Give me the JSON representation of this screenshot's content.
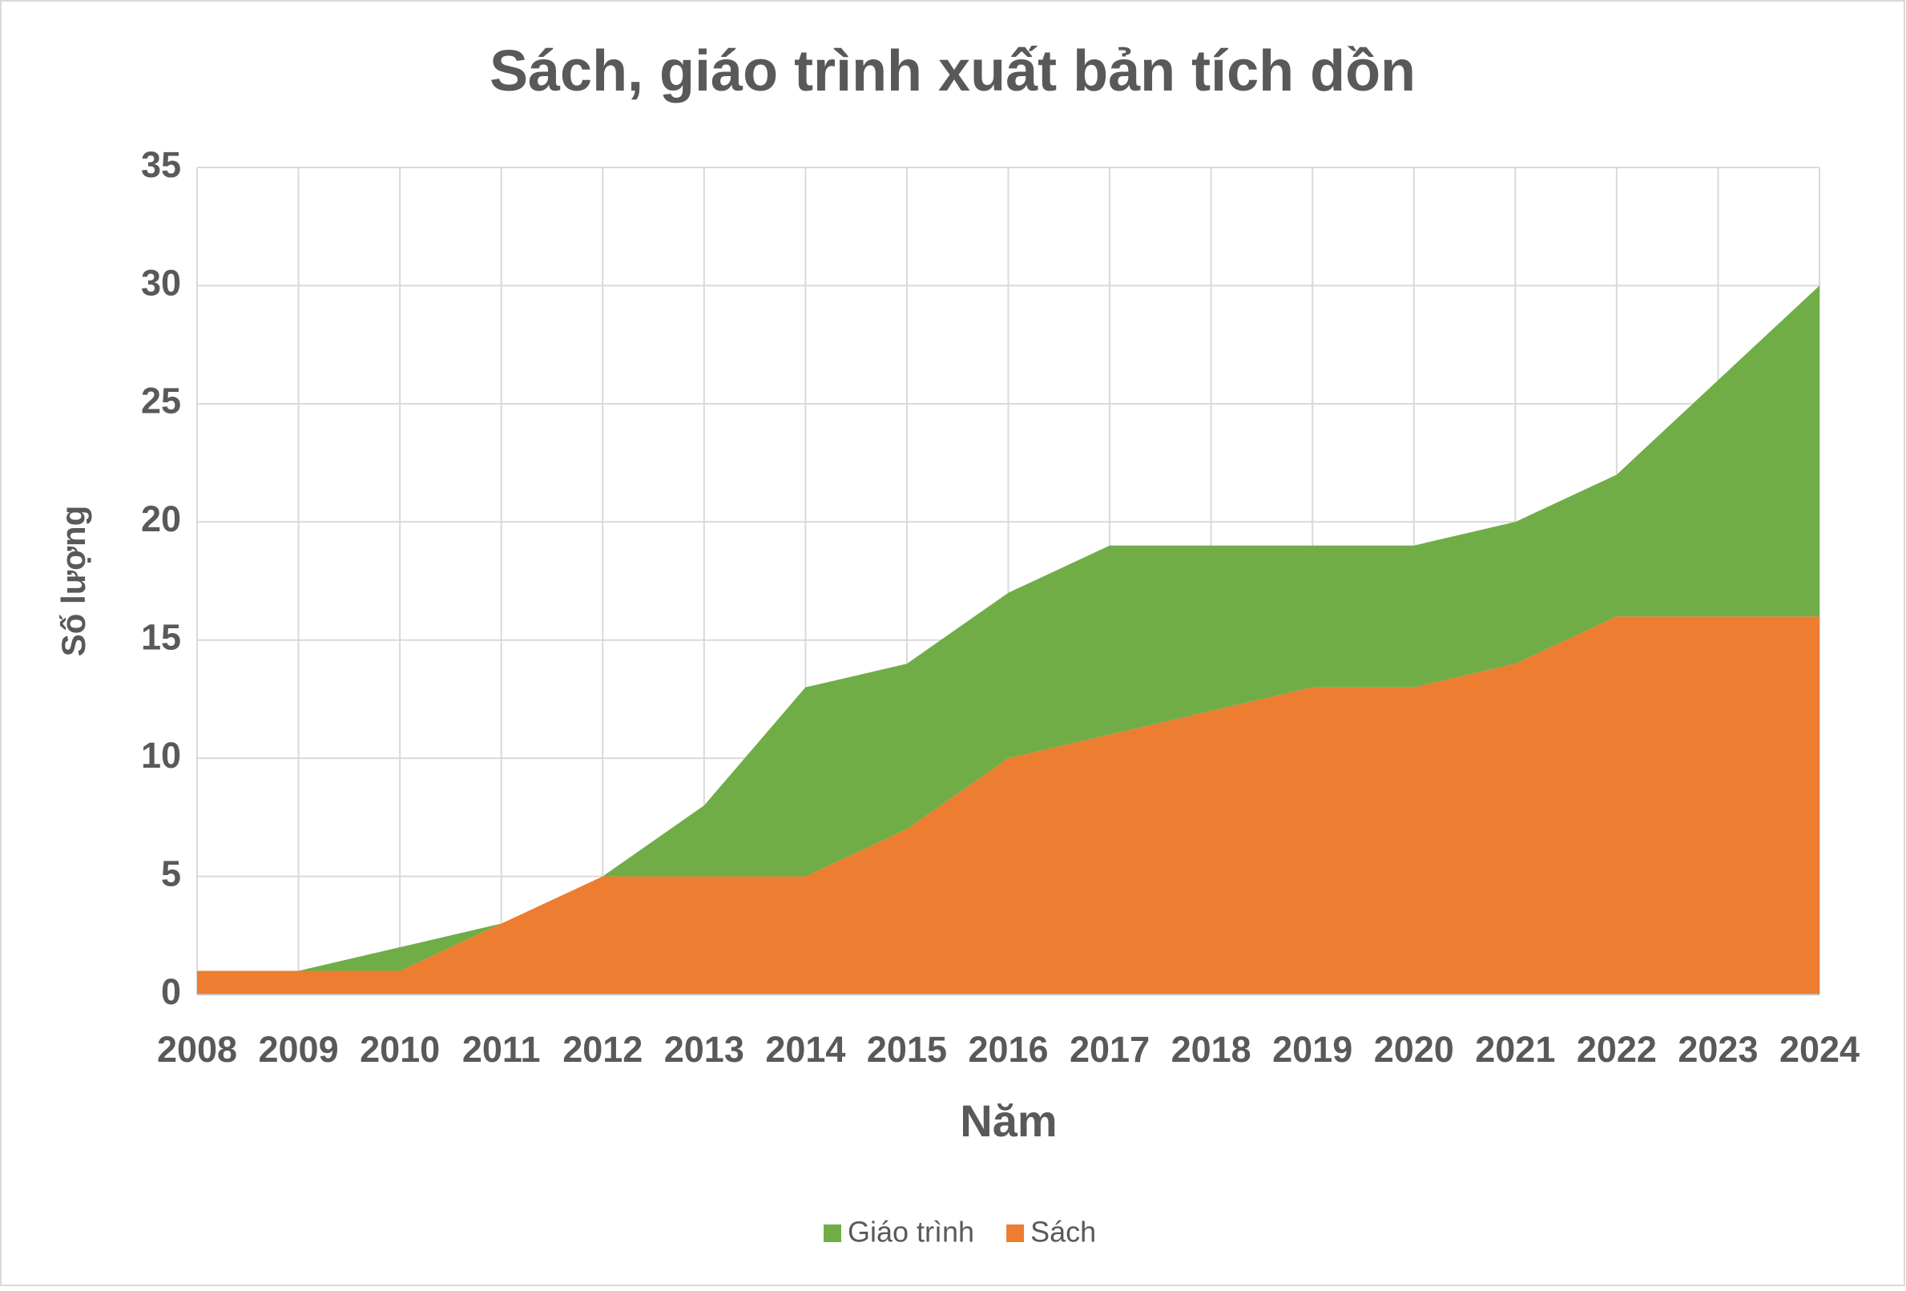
{
  "chart_data": {
    "type": "stacked_area",
    "title": "Sách, giáo trình xuất bản tích dồn",
    "x_label": "Năm",
    "y_label": "Số lượng",
    "categories": [
      "2008",
      "2009",
      "2010",
      "2011",
      "2012",
      "2013",
      "2014",
      "2015",
      "2016",
      "2017",
      "2018",
      "2019",
      "2020",
      "2021",
      "2022",
      "2023",
      "2024"
    ],
    "series": [
      {
        "name": "Giáo trình",
        "color": "#70ad47",
        "values": [
          0,
          0,
          1,
          0,
          0,
          3,
          8,
          7,
          7,
          8,
          7,
          6,
          6,
          6,
          6,
          10,
          14
        ]
      },
      {
        "name": "Sách",
        "color": "#ed7d31",
        "values": [
          1,
          1,
          1,
          3,
          5,
          5,
          5,
          7,
          10,
          11,
          12,
          13,
          13,
          14,
          16,
          16,
          16
        ]
      }
    ],
    "ylim": [
      0,
      35
    ],
    "yticks": [
      0,
      5,
      10,
      15,
      20,
      25,
      30,
      35
    ],
    "grid": true,
    "legend": "bottom"
  }
}
